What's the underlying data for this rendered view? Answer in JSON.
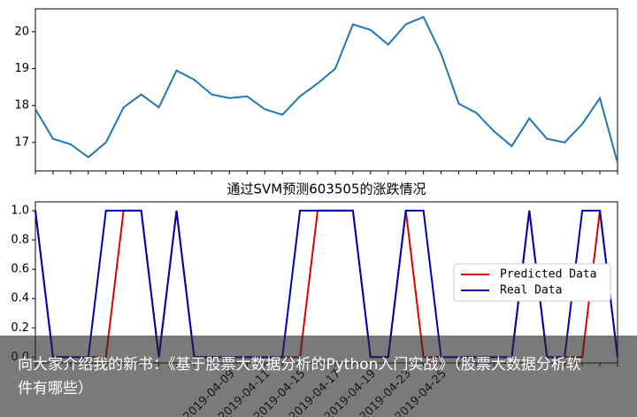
{
  "chart_data": [
    {
      "type": "line",
      "values": [
        17.9,
        17.1,
        16.95,
        16.6,
        17.0,
        17.95,
        18.3,
        17.95,
        18.95,
        18.7,
        18.3,
        18.2,
        18.25,
        17.9,
        17.75,
        18.25,
        18.6,
        19.0,
        20.2,
        20.05,
        19.65,
        20.2,
        20.4,
        19.4,
        18.05,
        17.8,
        17.3,
        16.9,
        17.65,
        17.1,
        17.0,
        17.5,
        18.2,
        16.45
      ],
      "color": "#1f77b4",
      "ylim": [
        16.23,
        20.62
      ],
      "yticks": [
        17,
        18,
        19,
        20
      ]
    },
    {
      "type": "line",
      "title": "通过SVM预测603505的涨跌情况",
      "categories": [
        null,
        null,
        null,
        null,
        null,
        null,
        null,
        null,
        null,
        null,
        null,
        "2019-04-09",
        null,
        "2019-04-11",
        null,
        "2019-04-15",
        null,
        "2019-04-17",
        null,
        "2019-04-19",
        null,
        "2019-04-23",
        null,
        "2019-04-25",
        null,
        null,
        null,
        null,
        null,
        null,
        null,
        null,
        null,
        null
      ],
      "series": [
        {
          "name": "Predicted Data",
          "color": "#e00000",
          "values": [
            1,
            0,
            0,
            0,
            0,
            1,
            1,
            0,
            1,
            0,
            0,
            0,
            0,
            0,
            0,
            0,
            1,
            1,
            1,
            0,
            0,
            1,
            0,
            0,
            0,
            0,
            0,
            0,
            1,
            0,
            0,
            0,
            1,
            0
          ]
        },
        {
          "name": "Real Data",
          "color": "#0000b0",
          "values": [
            1,
            0,
            0,
            0,
            1,
            1,
            1,
            0,
            1,
            0,
            0,
            0,
            0,
            0,
            0,
            1,
            1,
            1,
            1,
            0,
            0,
            1,
            1,
            0,
            0,
            0,
            0,
            0,
            1,
            0,
            0,
            1,
            1,
            0
          ]
        }
      ],
      "ylim": [
        -0.04,
        1.06
      ],
      "yticks": [
        {
          "value": 0,
          "label": "0.0"
        },
        {
          "value": 0.2,
          "label": "0.2"
        },
        {
          "value": 0.4,
          "label": "0.4"
        },
        {
          "value": 0.6,
          "label": "0.6"
        },
        {
          "value": 0.8,
          "label": "0.8"
        },
        {
          "value": 1,
          "label": "1.0"
        }
      ],
      "legend": "center right"
    }
  ],
  "overlay": {
    "text": "向大家介绍我的新书：《基于股票大数据分析的Python入门实战》（股票大数据分析软件有哪些）"
  }
}
